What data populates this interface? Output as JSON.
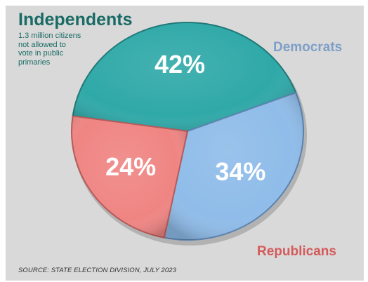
{
  "chart_data": {
    "type": "pie",
    "slices": [
      {
        "label": "Independents",
        "value": 42,
        "value_label": "42%",
        "color": "#2fa9a8",
        "edge_color": "#1f7876"
      },
      {
        "label": "Democrats",
        "value": 34,
        "value_label": "34%",
        "color": "#8fbce9",
        "edge_color": "#5a83b0"
      },
      {
        "label": "Republicans",
        "value": 24,
        "value_label": "24%",
        "color": "#ef8583",
        "edge_color": "#b65a58"
      }
    ],
    "annotation": [
      "1.3 million citizens",
      "not allowed to",
      "vote in public",
      "primaries"
    ],
    "source": "SOURCE: STATE ELECTION DIVISION, JULY 2023"
  },
  "colors": {
    "background": "#d9d9d9",
    "independents_text": "#1a6b66",
    "democrats_text": "#7e9fc7",
    "republicans_text": "#d45b5b"
  }
}
